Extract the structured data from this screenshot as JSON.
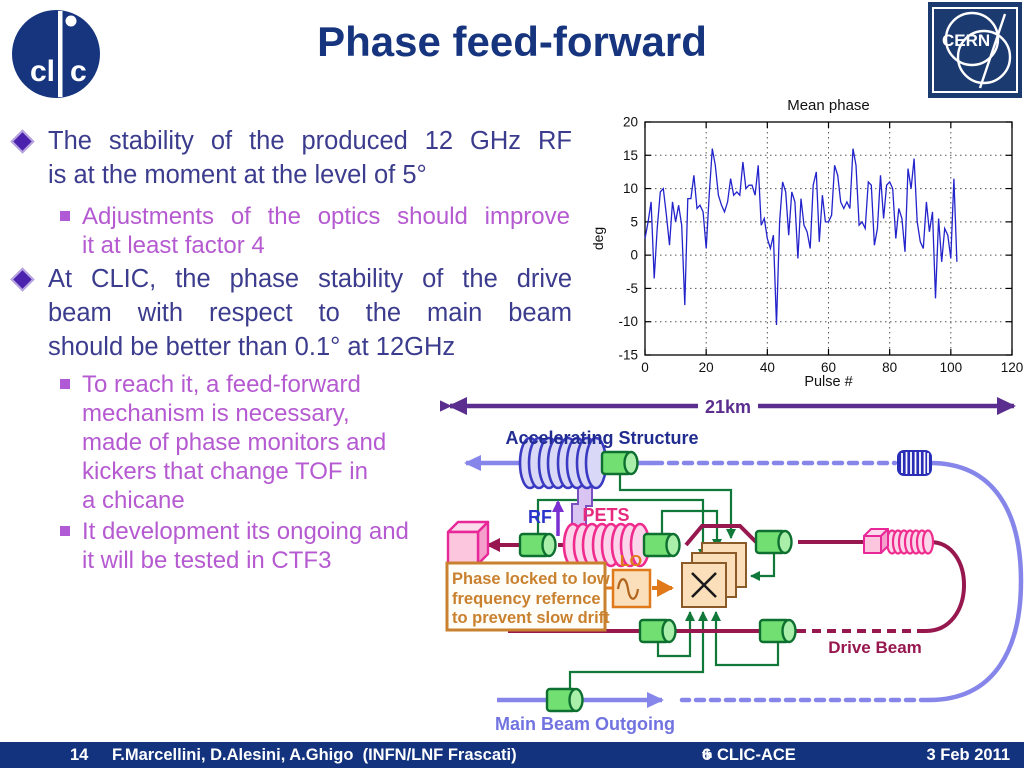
{
  "slide": {
    "title": "Phase feed-forward"
  },
  "logos": {
    "clic_left": "cl",
    "clic_right": "c",
    "cern": "CERN"
  },
  "colors": {
    "title_navy": "#16357e",
    "body_indigo": "#3c3c8e",
    "sub_orchid": "#b55ad1",
    "footer_navy": "#14337f",
    "chart_line_blue": "#2323cc",
    "main_beam_periwinkle": "#8686ea",
    "drive_beam_maroon": "#97174f",
    "monitor_green": "#107030",
    "pets_pink": "#ef2b8d",
    "lo_orange": "#e0791a",
    "span_purple": "#5b2d8e"
  },
  "bullets": [
    {
      "level": 1,
      "justify": true,
      "lines": [
        "The stability of the produced 12 GHz RF",
        "is at the moment at the level of 5°"
      ]
    },
    {
      "level": 2,
      "justify": true,
      "lines": [
        "Adjustments of the optics should improve",
        "it at least factor 4"
      ]
    },
    {
      "level": 1,
      "justify": true,
      "lines": [
        "At CLIC, the phase stability of the drive",
        "beam with respect to the main beam",
        "should be better than 0.1° at 12GHz"
      ]
    },
    {
      "level": 2,
      "justify": false,
      "lines": [
        "To reach it, a feed-forward",
        "mechanism  is necessary,",
        "made of phase monitors and",
        "kickers that change TOF in",
        "a chicane"
      ]
    },
    {
      "level": 2,
      "justify": false,
      "lines": [
        "It development its ongoing and",
        "it will be tested in CTF3"
      ]
    }
  ],
  "chart_data": {
    "type": "line",
    "title": "Mean phase",
    "xlabel": "Pulse #",
    "ylabel": "deg",
    "xlim": [
      0,
      120
    ],
    "ylim": [
      -15,
      20
    ],
    "xticks": [
      0,
      20,
      40,
      60,
      80,
      100,
      120
    ],
    "yticks": [
      -15,
      -10,
      -5,
      0,
      5,
      10,
      15,
      20
    ],
    "x_grid": [
      20,
      40,
      60,
      80,
      100
    ],
    "y_grid": [
      -10,
      -5,
      0,
      5,
      10,
      15
    ],
    "grid": "dotted",
    "line_color": "#2323cc",
    "x_start": 0,
    "x_step": 1,
    "values": [
      2.5,
      5,
      8,
      -3.5,
      4,
      9.5,
      10,
      6,
      1.5,
      8,
      5,
      7.5,
      4.5,
      -7.5,
      8.5,
      8.5,
      12,
      7,
      7.5,
      6.5,
      1,
      9,
      16,
      13.5,
      9,
      7.5,
      6.5,
      8,
      11.5,
      9,
      9.5,
      9,
      14,
      10,
      10.5,
      10.5,
      9,
      13.5,
      4.5,
      5.5,
      2.5,
      1,
      3,
      -10.5,
      5,
      11,
      9.5,
      3,
      9.5,
      8,
      -0.5,
      8.5,
      4.5,
      3.5,
      1,
      10.5,
      12.5,
      2,
      9,
      5,
      5,
      6,
      13.5,
      12,
      8,
      7,
      8,
      7,
      16,
      13.5,
      4.5,
      5,
      4,
      11,
      10.5,
      1.5,
      4,
      12,
      5.5,
      10.5,
      11,
      10,
      2.5,
      7,
      5.5,
      0.5,
      13,
      10,
      14.5,
      5,
      2,
      1,
      8,
      3.5,
      6.5,
      -6.5,
      5.5,
      -1,
      4,
      3,
      -0.5,
      11.5,
      -1
    ]
  },
  "diagram": {
    "span_label": "21km",
    "accelerating_structure": "Accelerating Structure",
    "rf": "RF",
    "pets": "PETS",
    "lo": "LO",
    "phase_lines": [
      "Phase locked to low",
      "frequency refernce",
      "to prevent slow drift"
    ],
    "drive_beam": "Drive Beam",
    "main_beam_outgoing": "Main Beam Outgoing"
  },
  "footer": {
    "page": "14",
    "authors": "F.Marcellini, D.Alesini, A.Ghigo  (INFN/LNF Frascati)",
    "event_num": "6",
    "event_sup": "th",
    "event_rest": " CLIC-ACE",
    "date": "3 Feb 2011"
  }
}
